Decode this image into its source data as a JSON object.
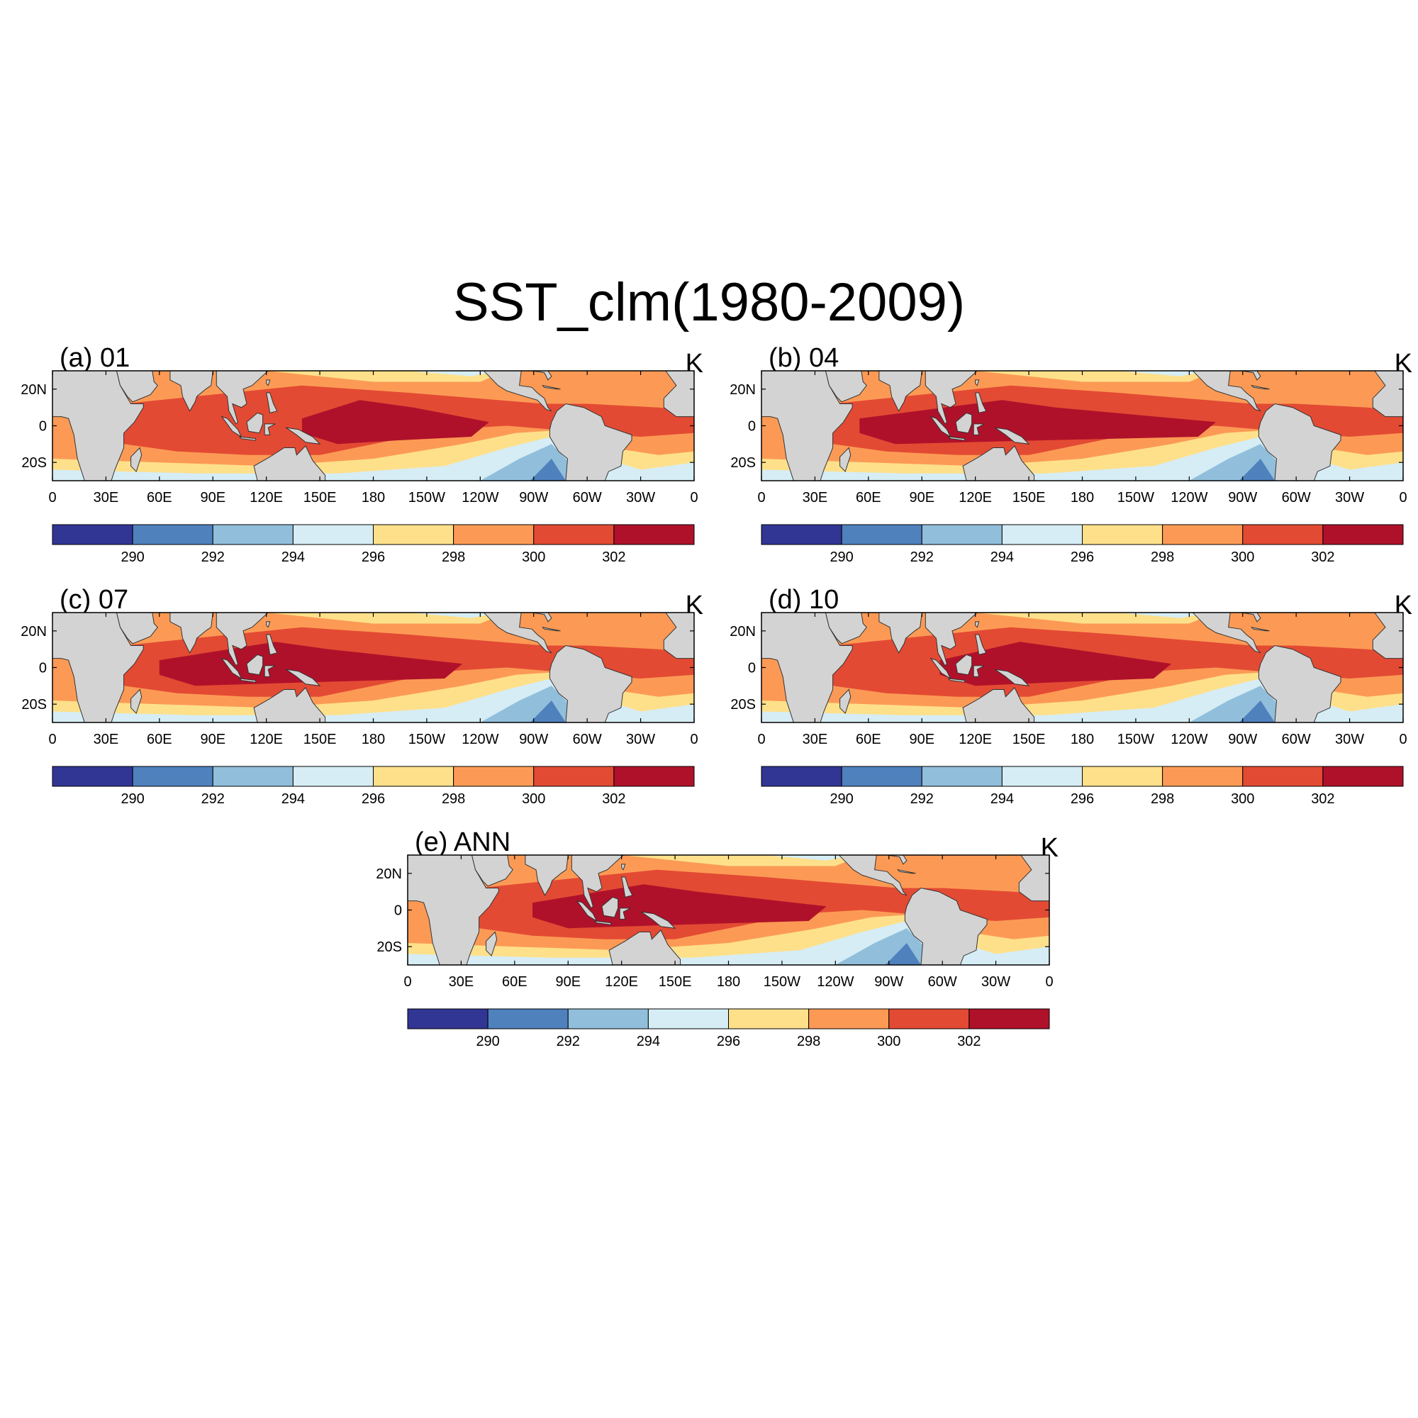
{
  "figure": {
    "title": "SST_clm(1980-2009)"
  },
  "chart_data": {
    "type": "heatmap",
    "lon_range": [
      0,
      360
    ],
    "lat_range": [
      -30,
      30
    ],
    "x_ticks": [
      "0",
      "30E",
      "60E",
      "90E",
      "120E",
      "150E",
      "180",
      "150W",
      "120W",
      "90W",
      "60W",
      "30W",
      "0"
    ],
    "y_ticks": [
      "20N",
      "0",
      "20S"
    ],
    "colorbar": {
      "unit": "K",
      "levels": [
        290,
        292,
        294,
        296,
        298,
        300,
        302
      ],
      "labels": [
        "290",
        "292",
        "294",
        "296",
        "298",
        "300",
        "302"
      ],
      "colors": [
        "#313695",
        "#4f81bd",
        "#91bfdb",
        "#d6edf5",
        "#fee08b",
        "#fc9a55",
        "#e34a33",
        "#b0112a"
      ]
    },
    "land_color": "#d3d3d3",
    "panels": [
      {
        "id": "a",
        "title": "(a) 01",
        "unit": "K",
        "warm_pool_lon": [
          140,
          245
        ],
        "peak": "302+"
      },
      {
        "id": "b",
        "title": "(b) 04",
        "unit": "K",
        "warm_pool_lon": [
          55,
          255
        ],
        "peak": "302+"
      },
      {
        "id": "c",
        "title": "(c) 07",
        "unit": "K",
        "warm_pool_lon": [
          60,
          230
        ],
        "peak": "302+"
      },
      {
        "id": "d",
        "title": "(d) 10",
        "unit": "K",
        "warm_pool_lon": [
          100,
          230
        ],
        "peak": "302+"
      },
      {
        "id": "e",
        "title": "(e) ANN",
        "unit": "K",
        "warm_pool_lon": [
          70,
          235
        ],
        "peak": "302+"
      }
    ]
  }
}
